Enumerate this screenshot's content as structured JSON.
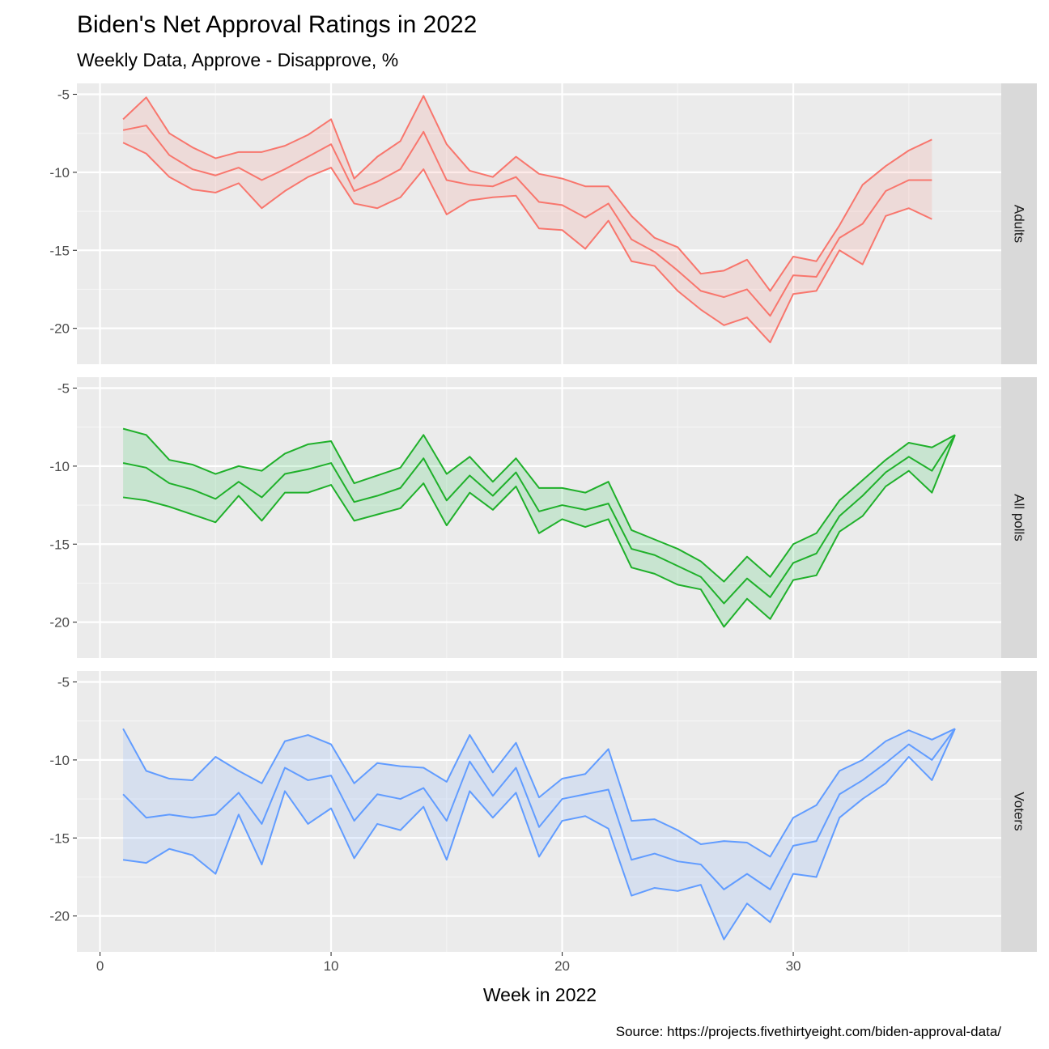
{
  "chart_data": {
    "type": "line",
    "title": "Biden's Net Approval Ratings in 2022",
    "subtitle": "Weekly Data, Approve - Disapprove, %",
    "xlabel": "Week in 2022",
    "ylabel": "",
    "caption": "Source: https://projects.fivethirtyeight.com/biden-approval-data/",
    "xlim": [
      -1.0,
      39.0
    ],
    "ylim": [
      -22.3,
      -4.3
    ],
    "x_ticks": [
      0,
      10,
      20,
      30
    ],
    "y_ticks": [
      -5,
      -10,
      -15,
      -20
    ],
    "grid": true,
    "legend": "none",
    "panels": [
      {
        "name": "Adults",
        "color": "#F8766D",
        "fill": "#F8766D",
        "x": [
          1,
          2,
          3,
          4,
          5,
          6,
          7,
          8,
          9,
          10,
          11,
          12,
          13,
          14,
          15,
          16,
          17,
          18,
          19,
          20,
          21,
          22,
          23,
          24,
          25,
          26,
          27,
          28,
          29,
          30,
          31,
          32,
          33,
          34,
          35,
          36
        ],
        "upper": [
          -6.6,
          -5.2,
          -7.5,
          -8.4,
          -9.1,
          -8.7,
          -8.7,
          -8.3,
          -7.6,
          -6.6,
          -10.4,
          -9.0,
          -8.0,
          -5.1,
          -8.2,
          -9.9,
          -10.3,
          -9.0,
          -10.1,
          -10.4,
          -10.9,
          -10.9,
          -12.8,
          -14.2,
          -14.8,
          -16.5,
          -16.3,
          -15.6,
          -17.6,
          -15.4,
          -15.7,
          -13.4,
          -10.8,
          -9.6,
          -8.6,
          -7.9
        ],
        "mean": [
          -7.3,
          -7.0,
          -8.9,
          -9.8,
          -10.2,
          -9.7,
          -10.5,
          -9.8,
          -9.0,
          -8.2,
          -11.2,
          -10.6,
          -9.8,
          -7.4,
          -10.5,
          -10.8,
          -10.9,
          -10.3,
          -11.9,
          -12.1,
          -12.9,
          -12.0,
          -14.3,
          -15.1,
          -16.3,
          -17.6,
          -18.0,
          -17.5,
          -19.2,
          -16.6,
          -16.7,
          -14.2,
          -13.3,
          -11.2,
          -10.5,
          -10.5
        ],
        "lower": [
          -8.1,
          -8.8,
          -10.3,
          -11.1,
          -11.3,
          -10.7,
          -12.3,
          -11.2,
          -10.3,
          -9.7,
          -12.0,
          -12.3,
          -11.6,
          -9.8,
          -12.7,
          -11.8,
          -11.6,
          -11.5,
          -13.6,
          -13.7,
          -14.9,
          -13.1,
          -15.7,
          -16.0,
          -17.6,
          -18.8,
          -19.8,
          -19.3,
          -20.9,
          -17.8,
          -17.6,
          -15.0,
          -15.9,
          -12.8,
          -12.3,
          -13.0
        ]
      },
      {
        "name": "All polls",
        "color": "#1FB02A",
        "fill": "#00BA38",
        "x": [
          1,
          2,
          3,
          4,
          5,
          6,
          7,
          8,
          9,
          10,
          11,
          12,
          13,
          14,
          15,
          16,
          17,
          18,
          19,
          20,
          21,
          22,
          23,
          24,
          25,
          26,
          27,
          28,
          29,
          30,
          31,
          32,
          33,
          34,
          35,
          36,
          37
        ],
        "upper": [
          -7.6,
          -8.0,
          -9.6,
          -9.9,
          -10.5,
          -10.0,
          -10.3,
          -9.2,
          -8.6,
          -8.4,
          -11.1,
          -10.6,
          -10.1,
          -8.0,
          -10.5,
          -9.4,
          -11.0,
          -9.5,
          -11.4,
          -11.4,
          -11.7,
          -11.0,
          -14.1,
          -14.7,
          -15.3,
          -16.1,
          -17.4,
          -15.8,
          -17.1,
          -15.0,
          -14.3,
          -12.2,
          -10.9,
          -9.6,
          -8.5,
          -8.8,
          -8.0
        ],
        "mean": [
          -9.8,
          -10.1,
          -11.1,
          -11.5,
          -12.1,
          -11.0,
          -12.0,
          -10.5,
          -10.2,
          -9.8,
          -12.3,
          -11.9,
          -11.4,
          -9.5,
          -12.2,
          -10.6,
          -11.9,
          -10.4,
          -12.9,
          -12.5,
          -12.8,
          -12.4,
          -15.3,
          -15.7,
          -16.4,
          -17.1,
          -18.8,
          -17.2,
          -18.4,
          -16.2,
          -15.6,
          -13.2,
          -11.9,
          -10.4,
          -9.4,
          -10.3,
          -8.0
        ],
        "lower": [
          -12.0,
          -12.2,
          -12.6,
          -13.1,
          -13.6,
          -11.9,
          -13.5,
          -11.7,
          -11.7,
          -11.2,
          -13.5,
          -13.1,
          -12.7,
          -11.1,
          -13.8,
          -11.7,
          -12.8,
          -11.3,
          -14.3,
          -13.4,
          -13.9,
          -13.4,
          -16.5,
          -16.9,
          -17.6,
          -17.9,
          -20.3,
          -18.5,
          -19.8,
          -17.3,
          -17.0,
          -14.2,
          -13.2,
          -11.3,
          -10.3,
          -11.7,
          -8.0
        ]
      },
      {
        "name": "Voters",
        "color": "#619CFF",
        "fill": "#619CFF",
        "x": [
          1,
          2,
          3,
          4,
          5,
          6,
          7,
          8,
          9,
          10,
          11,
          12,
          13,
          14,
          15,
          16,
          17,
          18,
          19,
          20,
          21,
          22,
          23,
          24,
          25,
          26,
          27,
          28,
          29,
          30,
          31,
          32,
          33,
          34,
          35,
          36,
          37
        ],
        "upper": [
          -8.0,
          -10.7,
          -11.2,
          -11.3,
          -9.8,
          -10.7,
          -11.5,
          -8.8,
          -8.4,
          -9.0,
          -11.5,
          -10.2,
          -10.4,
          -10.5,
          -11.4,
          -8.4,
          -10.8,
          -8.9,
          -12.4,
          -11.2,
          -10.9,
          -9.3,
          -13.9,
          -13.8,
          -14.5,
          -15.4,
          -15.2,
          -15.3,
          -16.2,
          -13.7,
          -12.9,
          -10.7,
          -10.0,
          -8.8,
          -8.1,
          -8.7,
          -8.0
        ],
        "mean": [
          -12.2,
          -13.7,
          -13.5,
          -13.7,
          -13.5,
          -12.1,
          -14.1,
          -10.5,
          -11.3,
          -11.0,
          -13.9,
          -12.2,
          -12.5,
          -11.8,
          -13.9,
          -10.1,
          -12.3,
          -10.5,
          -14.3,
          -12.5,
          -12.2,
          -11.9,
          -16.4,
          -16.0,
          -16.5,
          -16.7,
          -18.3,
          -17.3,
          -18.3,
          -15.5,
          -15.2,
          -12.2,
          -11.3,
          -10.2,
          -9.0,
          -10.0,
          -8.0
        ],
        "lower": [
          -16.4,
          -16.6,
          -15.7,
          -16.1,
          -17.3,
          -13.5,
          -16.7,
          -12.0,
          -14.1,
          -13.1,
          -16.3,
          -14.1,
          -14.5,
          -13.0,
          -16.4,
          -12.0,
          -13.7,
          -12.1,
          -16.2,
          -13.9,
          -13.6,
          -14.4,
          -18.7,
          -18.2,
          -18.4,
          -18.0,
          -21.5,
          -19.2,
          -20.4,
          -17.3,
          -17.5,
          -13.7,
          -12.5,
          -11.5,
          -9.8,
          -11.3,
          -8.0
        ]
      }
    ]
  }
}
